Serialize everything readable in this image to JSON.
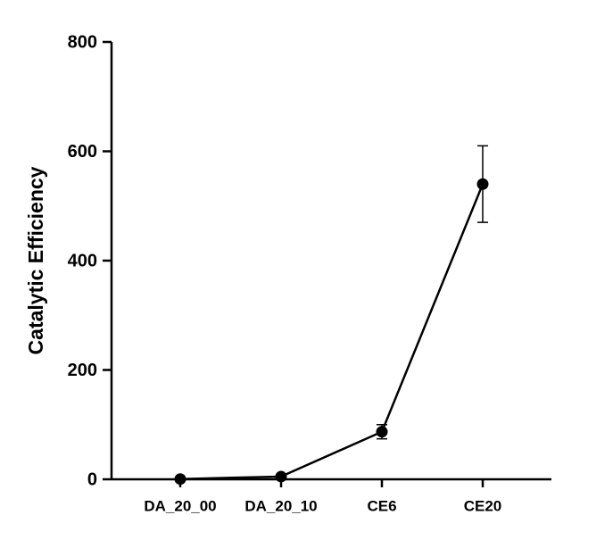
{
  "chart_data": {
    "type": "line",
    "y_label": "Catalytic Efficiency",
    "categories": [
      "DA_20_00",
      "DA_20_10",
      "CE6",
      "CE20"
    ],
    "values": [
      0.5,
      5,
      87,
      540
    ],
    "errors": [
      0,
      2,
      13,
      70
    ],
    "color": "#000000",
    "ylim": [
      0,
      800
    ],
    "yticks": [
      0,
      200,
      400,
      600,
      800
    ]
  }
}
